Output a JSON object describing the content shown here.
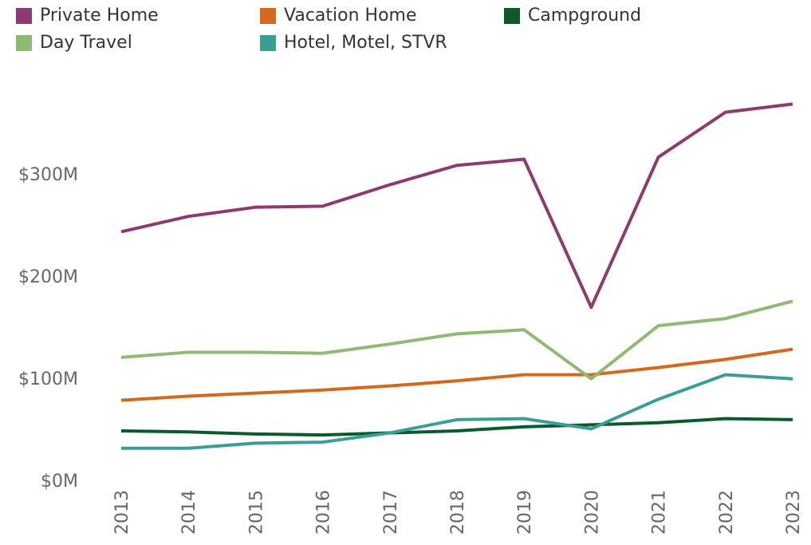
{
  "chart_data": {
    "type": "line",
    "categories": [
      "2013",
      "2014",
      "2015",
      "2016",
      "2017",
      "2018",
      "2019",
      "2020",
      "2021",
      "2022",
      "2023"
    ],
    "series": [
      {
        "name": "Private Home",
        "color": "#8e3a72",
        "values": [
          245,
          260,
          269,
          270,
          291,
          310,
          316,
          171,
          318,
          362,
          370
        ]
      },
      {
        "name": "Vacation Home",
        "color": "#d2691e",
        "values": [
          80,
          84,
          87,
          90,
          94,
          99,
          105,
          105,
          112,
          120,
          130
        ]
      },
      {
        "name": "Campground",
        "color": "#0b5a2b",
        "values": [
          50,
          49,
          47,
          46,
          48,
          50,
          54,
          56,
          58,
          62,
          61
        ]
      },
      {
        "name": "Day Travel",
        "color": "#8fba74",
        "values": [
          122,
          127,
          127,
          126,
          135,
          145,
          149,
          101,
          153,
          160,
          177
        ]
      },
      {
        "name": "Hotel, Motel, STVR",
        "color": "#3a9e96",
        "values": [
          33,
          33,
          38,
          39,
          48,
          61,
          62,
          52,
          81,
          105,
          101
        ]
      }
    ],
    "ylim": [
      0,
      390
    ],
    "yticks": [
      {
        "value": 0,
        "label": "$0M"
      },
      {
        "value": 100,
        "label": "$100M"
      },
      {
        "value": 200,
        "label": "$200M"
      },
      {
        "value": 300,
        "label": "$300M"
      }
    ],
    "legend": "top-left"
  }
}
